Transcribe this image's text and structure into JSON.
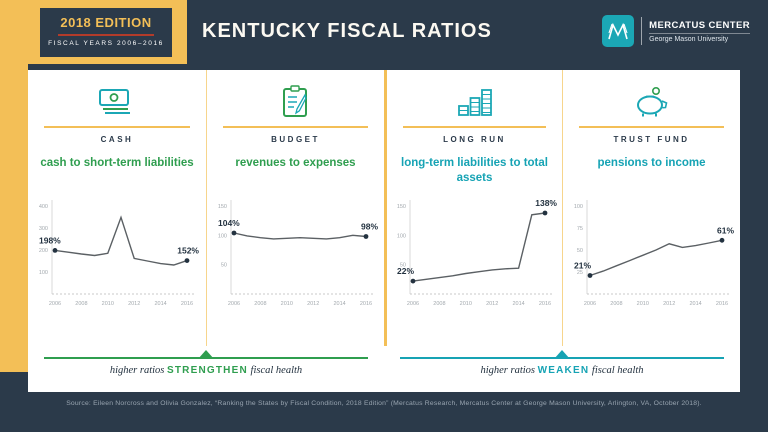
{
  "colors": {
    "navy": "#2b3a4a",
    "yellow": "#f3bf57",
    "red": "#b23b2a",
    "green": "#2f9e4f",
    "teal": "#16a3b4",
    "card": "#ffffff"
  },
  "header": {
    "edition": "2018 EDITION",
    "fiscal_years": "FISCAL YEARS 2006–2016",
    "title": "KENTUCKY FISCAL RATIOS",
    "logo_name": "MERCATUS CENTER",
    "logo_sub": "George Mason University"
  },
  "chart_data": [
    {
      "type": "line",
      "category": "CASH",
      "title": "cash to short-term liabilities",
      "accent": "#2f9e4f",
      "x": [
        2006,
        2007,
        2008,
        2009,
        2010,
        2011,
        2012,
        2013,
        2014,
        2015,
        2016
      ],
      "x_ticks": [
        2006,
        2008,
        2010,
        2012,
        2014,
        2016
      ],
      "values": [
        198,
        190,
        182,
        175,
        185,
        348,
        162,
        150,
        138,
        132,
        152
      ],
      "ylim": [
        0,
        400
      ],
      "yticks": [
        100,
        200,
        300,
        400
      ],
      "start_label": "198%",
      "end_label": "152%"
    },
    {
      "type": "line",
      "category": "BUDGET",
      "title": "revenues to expenses",
      "accent": "#2f9e4f",
      "x": [
        2006,
        2007,
        2008,
        2009,
        2010,
        2011,
        2012,
        2013,
        2014,
        2015,
        2016
      ],
      "x_ticks": [
        2006,
        2008,
        2010,
        2012,
        2014,
        2016
      ],
      "values": [
        104,
        99,
        96,
        94,
        95,
        96,
        95,
        94,
        96,
        100,
        98
      ],
      "ylim": [
        0,
        150
      ],
      "yticks": [
        50,
        100,
        150
      ],
      "start_label": "104%",
      "end_label": "98%"
    },
    {
      "type": "line",
      "category": "LONG RUN",
      "title": "long-term liabilities to total assets",
      "accent": "#16a3b4",
      "x": [
        2006,
        2007,
        2008,
        2009,
        2010,
        2011,
        2012,
        2013,
        2014,
        2015,
        2016
      ],
      "x_ticks": [
        2006,
        2008,
        2010,
        2012,
        2014,
        2016
      ],
      "values": [
        22,
        25,
        28,
        31,
        35,
        38,
        41,
        43,
        44,
        135,
        138
      ],
      "ylim": [
        0,
        150
      ],
      "yticks": [
        50,
        100,
        150
      ],
      "start_label": "22%",
      "end_label": "138%"
    },
    {
      "type": "line",
      "category": "TRUST FUND",
      "title": "pensions to income",
      "accent": "#16a3b4",
      "x": [
        2006,
        2007,
        2008,
        2009,
        2010,
        2011,
        2012,
        2013,
        2014,
        2015,
        2016
      ],
      "x_ticks": [
        2006,
        2008,
        2010,
        2012,
        2014,
        2016
      ],
      "values": [
        21,
        26,
        32,
        38,
        44,
        50,
        57,
        53,
        55,
        58,
        61
      ],
      "ylim": [
        0,
        100
      ],
      "yticks": [
        25,
        50,
        75,
        100
      ],
      "start_label": "21%",
      "end_label": "61%"
    }
  ],
  "footers": [
    {
      "pre": "higher ratios",
      "strong": "STRENGTHEN",
      "post": "fiscal health"
    },
    {
      "pre": "higher ratios",
      "strong": "WEAKEN",
      "post": "fiscal health"
    }
  ],
  "source": "Source: Eileen Norcross and Olivia Gonzalez, “Ranking the States by Fiscal Condition, 2018 Edition” (Mercatus Research, Mercatus Center at George Mason University, Arlington, VA, October 2018)."
}
